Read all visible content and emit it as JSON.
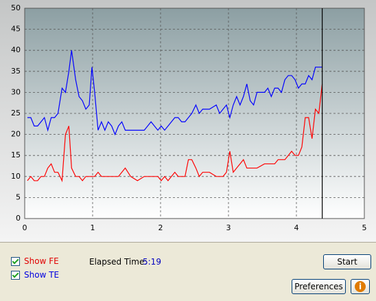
{
  "chart_data": {
    "type": "line",
    "x": [
      0.04,
      0.09,
      0.14,
      0.19,
      0.24,
      0.29,
      0.34,
      0.39,
      0.44,
      0.49,
      0.55,
      0.6,
      0.65,
      0.69,
      0.75,
      0.8,
      0.85,
      0.9,
      0.95,
      0.99,
      1.03,
      1.08,
      1.13,
      1.18,
      1.23,
      1.28,
      1.33,
      1.38,
      1.43,
      1.48,
      1.56,
      1.66,
      1.76,
      1.81,
      1.86,
      1.91,
      1.96,
      2.01,
      2.06,
      2.11,
      2.16,
      2.21,
      2.26,
      2.31,
      2.36,
      2.41,
      2.46,
      2.52,
      2.57,
      2.62,
      2.72,
      2.82,
      2.87,
      2.92,
      2.97,
      3.02,
      3.07,
      3.12,
      3.17,
      3.22,
      3.27,
      3.32,
      3.37,
      3.42,
      3.53,
      3.58,
      3.63,
      3.68,
      3.73,
      3.78,
      3.83,
      3.88,
      3.93,
      3.98,
      4.03,
      4.08,
      4.13,
      4.18,
      4.23,
      4.28,
      4.33,
      4.38
    ],
    "series": [
      {
        "name": "Show FE",
        "color": "#ff0000",
        "values": [
          9,
          10,
          9,
          9,
          10,
          10,
          12,
          13,
          11,
          11,
          9,
          20,
          22,
          12,
          10,
          10,
          9,
          10,
          10,
          10,
          10,
          11,
          10,
          10,
          10,
          10,
          10,
          10,
          11,
          12,
          10,
          9,
          10,
          10,
          10,
          10,
          10,
          9,
          10,
          9,
          10,
          11,
          10,
          10,
          10,
          14,
          14,
          12,
          10,
          11,
          11,
          10,
          10,
          10,
          11,
          16,
          11,
          12,
          13,
          14,
          12,
          12,
          12,
          12,
          13,
          13,
          13,
          13,
          14,
          14,
          14,
          15,
          16,
          15,
          15,
          17,
          24,
          24,
          19,
          26,
          25,
          32
        ]
      },
      {
        "name": "Show TE",
        "color": "#0000ff",
        "values": [
          24,
          24,
          22,
          22,
          23,
          24,
          21,
          24,
          24,
          25,
          31,
          30,
          35,
          40,
          33,
          29,
          28,
          26,
          27,
          36,
          30,
          21,
          23,
          21,
          23,
          22,
          20,
          22,
          23,
          21,
          21,
          21,
          21,
          22,
          23,
          22,
          21,
          22,
          21,
          22,
          23,
          24,
          24,
          23,
          23,
          24,
          25,
          27,
          25,
          26,
          26,
          27,
          25,
          26,
          27,
          24,
          27,
          29,
          27,
          29,
          32,
          28,
          27,
          30,
          30,
          31,
          29,
          31,
          31,
          30,
          33,
          34,
          34,
          33,
          31,
          32,
          32,
          34,
          33,
          36,
          36,
          36
        ]
      }
    ],
    "xlim": [
      0,
      5
    ],
    "xticks": [
      0,
      1,
      2,
      3,
      4,
      5
    ],
    "ylim": [
      0,
      50
    ],
    "yticks": [
      0,
      5,
      10,
      15,
      20,
      25,
      30,
      35,
      40,
      45,
      50
    ],
    "grid": true,
    "cursor": 4.38
  },
  "controls": {
    "elapsed_label": "Elapsed Time:",
    "elapsed_value": "5:19",
    "start_button": "Start",
    "preferences_button": "Preferences",
    "info_button": "i"
  }
}
